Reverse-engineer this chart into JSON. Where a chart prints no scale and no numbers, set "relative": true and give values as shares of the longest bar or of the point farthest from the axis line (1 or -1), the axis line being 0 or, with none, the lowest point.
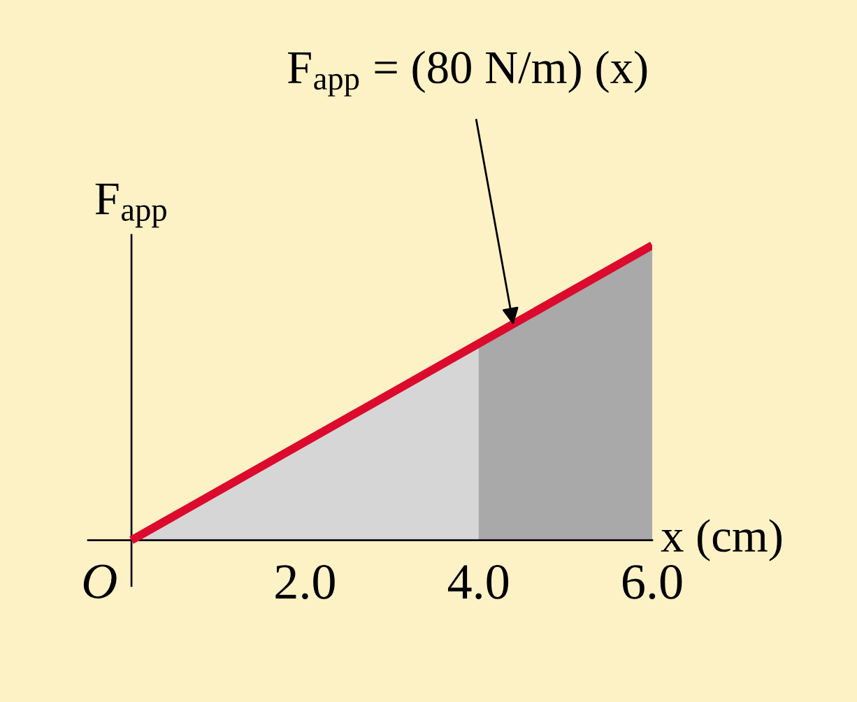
{
  "chart_data": {
    "type": "line",
    "relative": true,
    "series": [
      {
        "type": "area",
        "color": "#d6d6d6",
        "x": [
          0,
          4
        ],
        "values": [
          0,
          0.67
        ]
      },
      {
        "type": "area",
        "color": "#a9a9a9",
        "x": [
          4,
          6
        ],
        "values": [
          0.67,
          1
        ]
      },
      {
        "color": "#dc0a2d",
        "x": [
          0,
          6
        ],
        "values": [
          0,
          1
        ]
      }
    ],
    "xlim": [
      -0.5,
      6
    ],
    "xticks": [
      {
        "value": 2,
        "label": "2.0"
      },
      {
        "value": 4,
        "label": "4.0"
      },
      {
        "value": 6,
        "label": "6.0"
      }
    ],
    "xlabel": "x (cm)",
    "ylabel": "F$_{app}$",
    "annotations": [
      {
        "text": "O",
        "x": 0,
        "y": 0
      },
      {
        "text": "F$_{app}$ = (80 N/m) (x)",
        "x": 4.4,
        "y": 0.73
      }
    ],
    "grid": false
  }
}
